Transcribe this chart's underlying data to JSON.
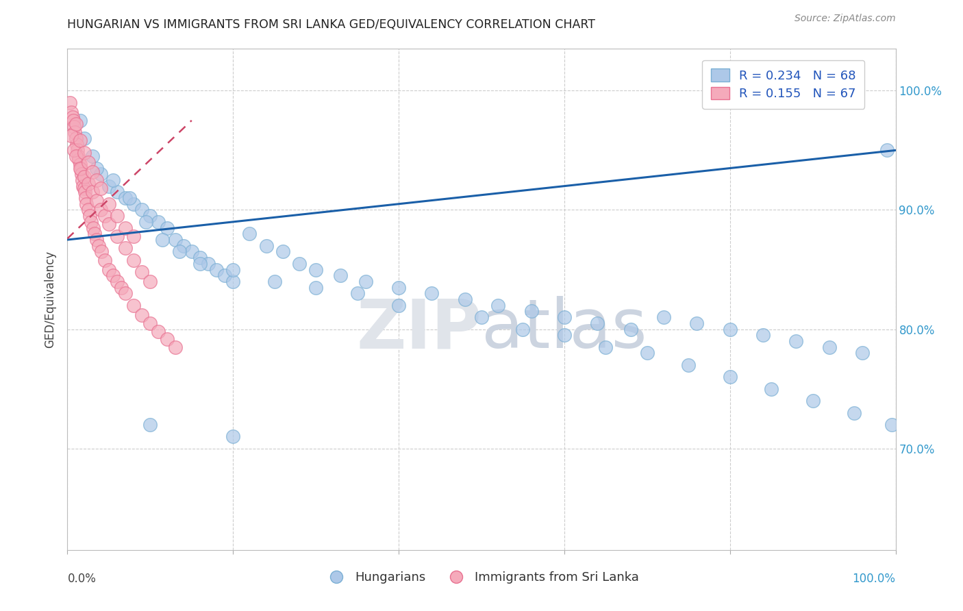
{
  "title": "HUNGARIAN VS IMMIGRANTS FROM SRI LANKA GED/EQUIVALENCY CORRELATION CHART",
  "source": "Source: ZipAtlas.com",
  "ylabel": "GED/Equivalency",
  "yticks": [
    0.7,
    0.8,
    0.9,
    1.0
  ],
  "ytick_labels": [
    "70.0%",
    "80.0%",
    "90.0%",
    "100.0%"
  ],
  "xlim": [
    0.0,
    100.0
  ],
  "ylim": [
    0.615,
    1.035
  ],
  "blue_R": 0.234,
  "blue_N": 68,
  "pink_R": 0.155,
  "pink_N": 67,
  "blue_color": "#adc8e8",
  "pink_color": "#f5aabb",
  "blue_edge": "#7aafd4",
  "pink_edge": "#e87090",
  "trend_blue": "#1a5fa8",
  "trend_pink": "#cc4466",
  "legend_label_blue": "Hungarians",
  "legend_label_pink": "Immigrants from Sri Lanka",
  "blue_scatter_x": [
    1.5,
    2.0,
    3.0,
    4.0,
    5.0,
    6.0,
    7.0,
    8.0,
    9.0,
    10.0,
    11.0,
    12.0,
    13.0,
    14.0,
    15.0,
    16.0,
    17.0,
    18.0,
    19.0,
    20.0,
    22.0,
    24.0,
    26.0,
    28.0,
    30.0,
    33.0,
    36.0,
    40.0,
    44.0,
    48.0,
    52.0,
    56.0,
    60.0,
    64.0,
    68.0,
    72.0,
    76.0,
    80.0,
    84.0,
    88.0,
    92.0,
    96.0,
    99.0,
    3.5,
    5.5,
    7.5,
    9.5,
    11.5,
    13.5,
    16.0,
    20.0,
    25.0,
    30.0,
    35.0,
    40.0,
    50.0,
    55.0,
    60.0,
    65.0,
    70.0,
    75.0,
    80.0,
    85.0,
    90.0,
    95.0,
    99.5,
    10.0,
    20.0
  ],
  "blue_scatter_y": [
    0.975,
    0.96,
    0.945,
    0.93,
    0.92,
    0.915,
    0.91,
    0.905,
    0.9,
    0.895,
    0.89,
    0.885,
    0.875,
    0.87,
    0.865,
    0.86,
    0.855,
    0.85,
    0.845,
    0.84,
    0.88,
    0.87,
    0.865,
    0.855,
    0.85,
    0.845,
    0.84,
    0.835,
    0.83,
    0.825,
    0.82,
    0.815,
    0.81,
    0.805,
    0.8,
    0.81,
    0.805,
    0.8,
    0.795,
    0.79,
    0.785,
    0.78,
    0.95,
    0.935,
    0.925,
    0.91,
    0.89,
    0.875,
    0.865,
    0.855,
    0.85,
    0.84,
    0.835,
    0.83,
    0.82,
    0.81,
    0.8,
    0.795,
    0.785,
    0.78,
    0.77,
    0.76,
    0.75,
    0.74,
    0.73,
    0.72,
    0.72,
    0.71
  ],
  "pink_scatter_x": [
    0.3,
    0.5,
    0.6,
    0.7,
    0.8,
    0.9,
    1.0,
    1.1,
    1.2,
    1.3,
    1.4,
    1.5,
    1.6,
    1.7,
    1.8,
    1.9,
    2.0,
    2.1,
    2.2,
    2.3,
    2.5,
    2.7,
    2.9,
    3.1,
    3.3,
    3.5,
    3.8,
    4.1,
    4.5,
    5.0,
    5.5,
    6.0,
    6.5,
    7.0,
    8.0,
    9.0,
    10.0,
    11.0,
    12.0,
    13.0,
    0.5,
    0.8,
    1.0,
    1.5,
    2.0,
    2.5,
    3.0,
    3.5,
    4.0,
    4.5,
    5.0,
    6.0,
    7.0,
    8.0,
    9.0,
    10.0,
    1.0,
    1.5,
    2.0,
    2.5,
    3.0,
    3.5,
    4.0,
    5.0,
    6.0,
    7.0,
    8.0
  ],
  "pink_scatter_y": [
    0.99,
    0.982,
    0.978,
    0.975,
    0.97,
    0.965,
    0.96,
    0.955,
    0.95,
    0.945,
    0.942,
    0.938,
    0.934,
    0.93,
    0.925,
    0.92,
    0.918,
    0.915,
    0.91,
    0.905,
    0.9,
    0.895,
    0.89,
    0.885,
    0.88,
    0.875,
    0.87,
    0.865,
    0.858,
    0.85,
    0.845,
    0.84,
    0.835,
    0.83,
    0.82,
    0.812,
    0.805,
    0.798,
    0.792,
    0.785,
    0.962,
    0.95,
    0.945,
    0.935,
    0.928,
    0.922,
    0.915,
    0.908,
    0.9,
    0.895,
    0.888,
    0.878,
    0.868,
    0.858,
    0.848,
    0.84,
    0.972,
    0.958,
    0.948,
    0.94,
    0.932,
    0.925,
    0.918,
    0.905,
    0.895,
    0.885,
    0.878
  ]
}
